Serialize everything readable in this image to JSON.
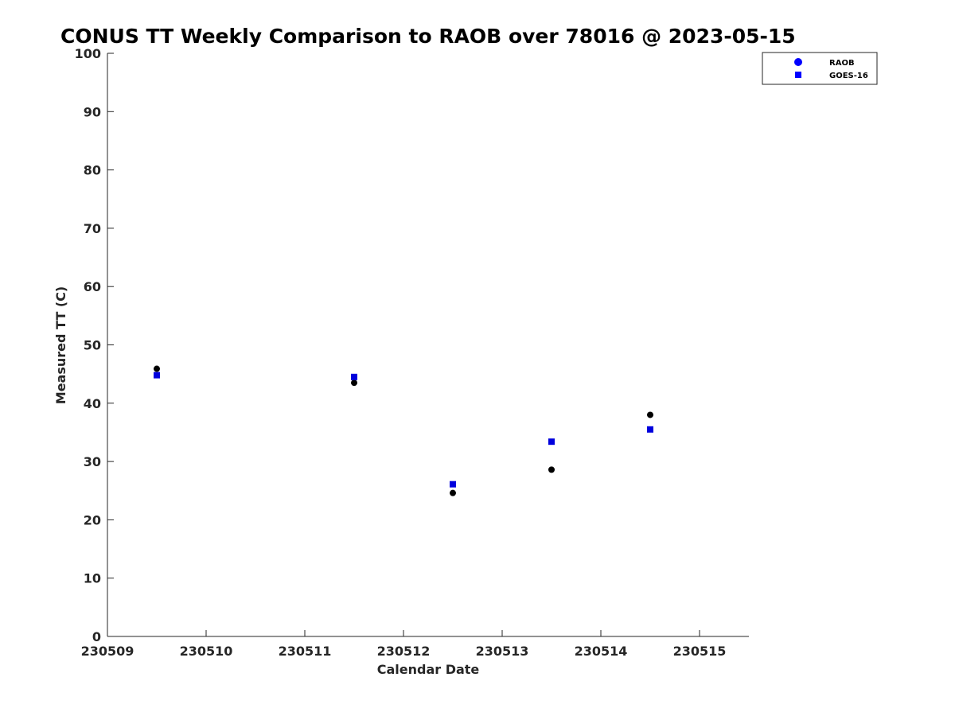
{
  "chart_data": {
    "type": "scatter",
    "title": "CONUS TT Weekly Comparison to RAOB over 78016 @ 2023-05-15",
    "xlabel": "Calendar Date",
    "ylabel": "Measured TT (C)",
    "xlim": [
      230509,
      230515.5
    ],
    "ylim": [
      0,
      100
    ],
    "xticks": [
      230509,
      230510,
      230511,
      230512,
      230513,
      230514,
      230515
    ],
    "xtick_labels": [
      "230509",
      "230510",
      "230511",
      "230512",
      "230513",
      "230514",
      "230515"
    ],
    "yticks": [
      0,
      10,
      20,
      30,
      40,
      50,
      60,
      70,
      80,
      90,
      100
    ],
    "ytick_labels": [
      "0",
      "10",
      "20",
      "30",
      "40",
      "50",
      "60",
      "70",
      "80",
      "90",
      "100"
    ],
    "grid": false,
    "legend_position": "top-right",
    "series": [
      {
        "name": "RAOB",
        "marker": "circle",
        "color": "#000000",
        "legend_color": "#0000ff",
        "x": [
          230509.5,
          230511.5,
          230512.5,
          230513.5,
          230514.5
        ],
        "y": [
          45.9,
          43.5,
          24.6,
          28.6,
          38.0
        ]
      },
      {
        "name": "GOES-16",
        "marker": "square",
        "color": "#0000dd",
        "legend_color": "#0000ff",
        "x": [
          230509.5,
          230511.5,
          230512.5,
          230513.5,
          230514.5
        ],
        "y": [
          44.8,
          44.5,
          26.1,
          33.4,
          35.5
        ]
      }
    ]
  }
}
